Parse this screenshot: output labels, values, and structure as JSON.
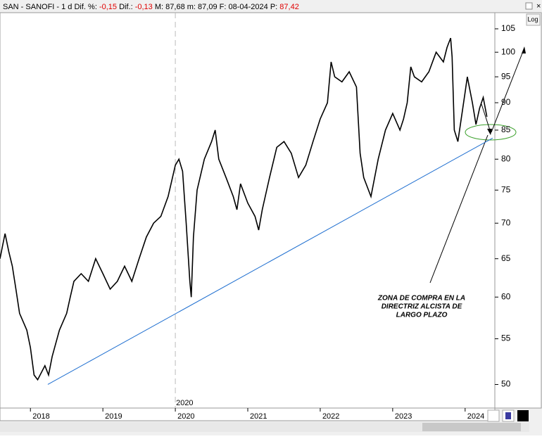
{
  "chart_data": {
    "type": "line",
    "title": "SAN - SANOFI - 1 d",
    "stats": [
      {
        "label": "Dif. %:",
        "value": "-0,15",
        "color": "#e00000"
      },
      {
        "label": "Dif.:",
        "value": "-0,13",
        "color": "#e00000"
      },
      {
        "label": "M:",
        "value": "87,68",
        "color": "#000000"
      },
      {
        "label": "m:",
        "value": "87,09",
        "color": "#000000"
      },
      {
        "label": "F:",
        "value": "08-04-2024",
        "color": "#000000"
      },
      {
        "label": "P:",
        "value": "87,42",
        "color": "#e00000"
      }
    ],
    "log_label": "Log",
    "log_y": true,
    "x": [
      2017.58,
      2017.62,
      2017.65,
      2017.7,
      2017.75,
      2017.8,
      2017.85,
      2017.9,
      2017.95,
      2018.0,
      2018.05,
      2018.1,
      2018.2,
      2018.25,
      2018.3,
      2018.4,
      2018.5,
      2018.55,
      2018.6,
      2018.7,
      2018.8,
      2018.9,
      2019.0,
      2019.1,
      2019.2,
      2019.3,
      2019.4,
      2019.5,
      2019.6,
      2019.7,
      2019.8,
      2019.9,
      2020.0,
      2020.05,
      2020.1,
      2020.15,
      2020.2,
      2020.22,
      2020.25,
      2020.3,
      2020.4,
      2020.5,
      2020.55,
      2020.6,
      2020.7,
      2020.8,
      2020.85,
      2020.9,
      2021.0,
      2021.1,
      2021.15,
      2021.2,
      2021.3,
      2021.4,
      2021.5,
      2021.6,
      2021.7,
      2021.8,
      2021.9,
      2022.0,
      2022.1,
      2022.15,
      2022.2,
      2022.3,
      2022.4,
      2022.5,
      2022.55,
      2022.6,
      2022.7,
      2022.8,
      2022.9,
      2023.0,
      2023.1,
      2023.15,
      2023.2,
      2023.25,
      2023.3,
      2023.4,
      2023.5,
      2023.6,
      2023.7,
      2023.75,
      2023.8,
      2023.82,
      2023.85,
      2023.9,
      2024.0,
      2024.03,
      2024.1,
      2024.15,
      2024.2,
      2024.25,
      2024.3
    ],
    "series": [
      {
        "name": "SAN",
        "color": "#000000",
        "values": [
          65,
          67,
          68.5,
          66,
          64,
          61,
          58,
          57,
          56,
          54,
          51,
          50.5,
          52,
          51,
          53,
          56,
          58,
          60,
          62,
          63,
          62,
          65,
          63,
          61,
          62,
          64,
          62,
          65,
          68,
          70,
          71,
          74,
          79,
          80,
          78,
          70,
          62,
          60,
          68,
          75,
          80,
          83,
          85,
          80,
          77,
          74,
          72,
          76,
          73,
          71,
          69,
          72,
          77,
          82,
          83,
          81,
          77,
          79,
          83,
          87,
          90,
          98,
          95,
          94,
          96,
          93,
          81,
          77,
          74,
          80,
          85,
          88,
          85,
          87,
          90,
          97,
          95,
          94,
          96,
          100,
          98,
          101,
          103,
          99,
          85,
          83,
          92,
          95,
          90,
          86,
          89,
          91,
          87.4
        ]
      }
    ],
    "trendline": {
      "color": "#1f6fd0",
      "x": [
        2018.24,
        2024.38
      ],
      "y": [
        50,
        83.6
      ]
    },
    "annotation": [
      "ZONA DE COMPRA EN LA",
      "DIRECTRIZ ALCISTA DE",
      "LARGO PLAZO"
    ],
    "xlim": [
      2017.58,
      2024.41
    ],
    "xticks": [
      2018,
      2019,
      2020,
      2021,
      2022,
      2023,
      2024
    ],
    "ylim": [
      47.6,
      108.6
    ],
    "yticks": [
      50,
      55,
      60,
      65,
      70,
      75,
      80,
      85,
      90,
      95,
      100,
      105
    ]
  }
}
